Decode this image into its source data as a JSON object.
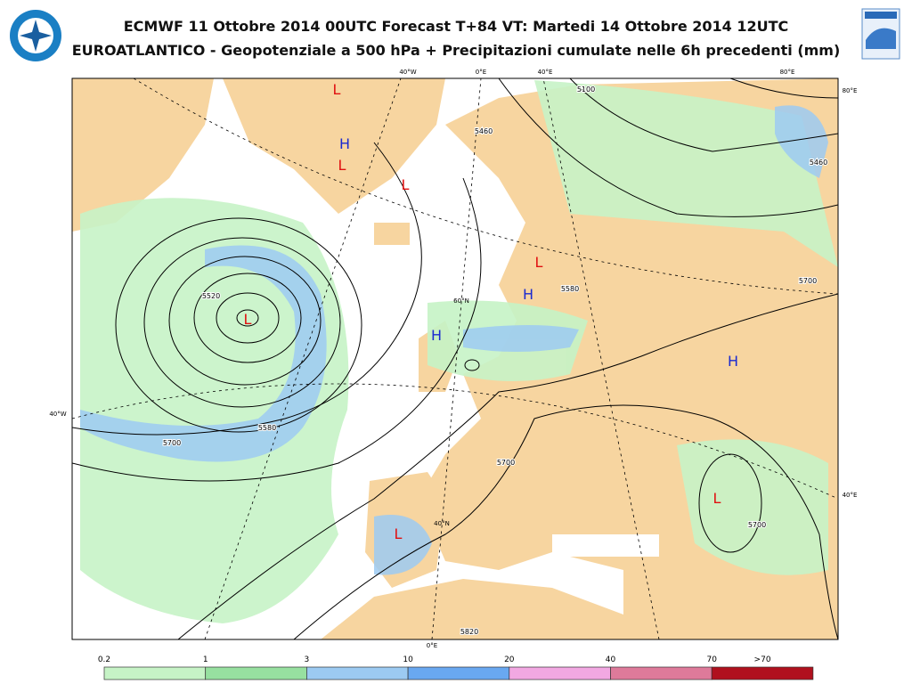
{
  "header": {
    "title_line1": "ECMWF 11 Ottobre 2014 00UTC Forecast T+84 VT: Martedi 14 Ottobre 2014 12UTC",
    "title_line2": "EUROATLANTICO - Geopotenziale a 500 hPa + Precipitazioni cumulate nelle 6h precedenti (mm)"
  },
  "map": {
    "grid_labels": [
      "40°W",
      "0°E",
      "40°E",
      "80°E",
      "80°E",
      "60°N",
      "40°W",
      "40°E",
      "40°N",
      "0°E"
    ],
    "contour_labels": [
      "5100",
      "5460",
      "5460",
      "5520",
      "5580",
      "5700",
      "5700",
      "5700",
      "5580",
      "5700",
      "5820"
    ],
    "pressure_systems": [
      "H",
      "L",
      "L",
      "L",
      "L",
      "H",
      "H",
      "L",
      "H",
      "L",
      "L"
    ]
  },
  "legend": {
    "labels": [
      "0.2",
      "1",
      "3",
      "10",
      "20",
      "40",
      "70",
      ">70"
    ],
    "colors": [
      "#c6f3c6",
      "#97e0a0",
      "#9ccaf2",
      "#69a8f0",
      "#f2a8e2",
      "#de7a9a",
      "#b0101e"
    ]
  }
}
